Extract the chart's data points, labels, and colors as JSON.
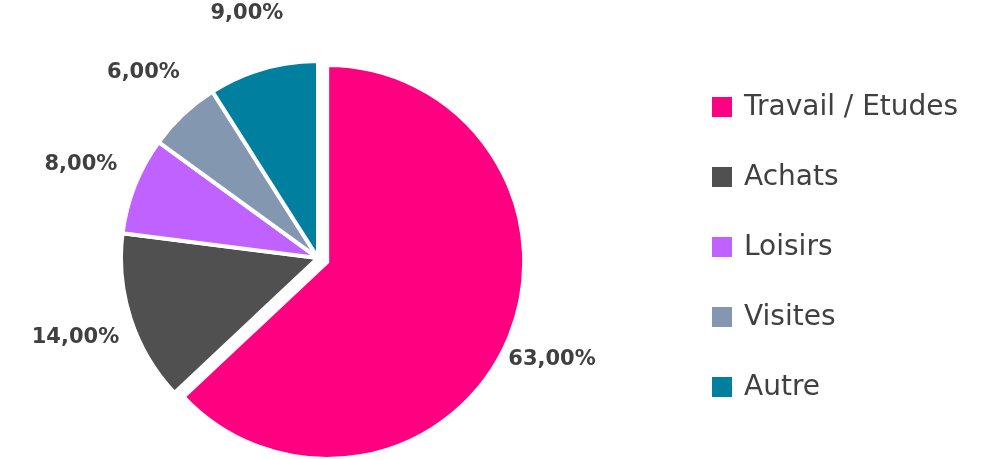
{
  "chart_data": {
    "type": "pie",
    "categories": [
      "Travail / Etudes",
      "Achats",
      "Loisirs",
      "Visites",
      "Autre"
    ],
    "values": [
      63,
      14,
      8,
      6,
      9
    ],
    "colors": [
      "#ff0080",
      "#505050",
      "#bf62ff",
      "#8497b0",
      "#00809e"
    ],
    "value_labels": [
      "63,00%",
      "14,00%",
      "8,00%",
      "6,00%",
      "9,00%"
    ],
    "legend": "right"
  }
}
